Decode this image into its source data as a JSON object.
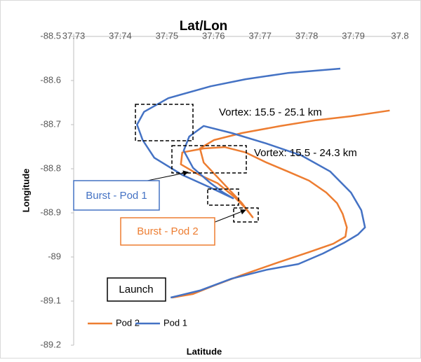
{
  "chart_data": {
    "type": "line",
    "title": "Lat/Lon",
    "x_label": "Latitude",
    "y_label": "Longitude",
    "xlim": [
      37.73,
      37.8
    ],
    "xticks": [
      37.73,
      37.74,
      37.75,
      37.76,
      37.77,
      37.78,
      37.79,
      37.8
    ],
    "ylim": [
      -89.2,
      -88.5
    ],
    "yticks": [
      -88.5,
      -88.6,
      -88.7,
      -88.8,
      -88.9,
      -89,
      -89.1,
      -89.2
    ],
    "grid": false,
    "legend": "bottom-left",
    "series": [
      {
        "name": "Pod 2",
        "color": "#ed7d31",
        "x": [
          37.7511,
          37.7556,
          37.7601,
          37.7661,
          37.7737,
          37.7805,
          37.7857,
          37.7883,
          37.7886,
          37.7877,
          37.7865,
          37.7842,
          37.7805,
          37.7759,
          37.7714,
          37.7669,
          37.7624,
          37.7579,
          37.7533,
          37.753,
          37.7564,
          37.7609,
          37.7646,
          37.7669,
          37.7684,
          37.7661,
          37.7621,
          37.7579,
          37.7571,
          37.7601,
          37.7661,
          37.7744,
          37.782,
          37.7895,
          37.7978
        ],
        "values": [
          -89.092,
          -89.084,
          -89.065,
          -89.041,
          -89.013,
          -88.989,
          -88.97,
          -88.954,
          -88.933,
          -88.902,
          -88.878,
          -88.854,
          -88.827,
          -88.806,
          -88.786,
          -88.763,
          -88.751,
          -88.754,
          -88.763,
          -88.79,
          -88.811,
          -88.833,
          -88.865,
          -88.89,
          -88.91,
          -88.878,
          -88.833,
          -88.786,
          -88.754,
          -88.735,
          -88.719,
          -88.703,
          -88.69,
          -88.681,
          -88.668
        ]
      },
      {
        "name": "Pod 1",
        "color": "#4472c4",
        "x": [
          37.7508,
          37.7571,
          37.7639,
          37.7714,
          37.7782,
          37.7835,
          37.788,
          37.791,
          37.7925,
          37.7917,
          37.7895,
          37.785,
          37.7789,
          37.7714,
          37.7639,
          37.7579,
          37.7548,
          37.7536,
          37.7556,
          37.7594,
          37.7621,
          37.7642,
          37.7594,
          37.7533,
          37.7473,
          37.7448,
          37.7436,
          37.7451,
          37.7503,
          37.7594,
          37.7669,
          37.7759,
          37.7872
        ],
        "values": [
          -89.092,
          -89.076,
          -89.049,
          -89.029,
          -89.016,
          -88.992,
          -88.968,
          -88.949,
          -88.933,
          -88.894,
          -88.854,
          -88.806,
          -88.77,
          -88.743,
          -88.719,
          -88.703,
          -88.727,
          -88.759,
          -88.798,
          -88.833,
          -88.854,
          -88.867,
          -88.843,
          -88.814,
          -88.775,
          -88.735,
          -88.7,
          -88.671,
          -88.64,
          -88.613,
          -88.597,
          -88.583,
          -88.573
        ]
      }
    ],
    "annotations": [
      "Vortex: 15.5 - 25.1 km",
      "Vortex: 15.5 - 24.3 km",
      "Burst - Pod 1",
      "Burst - Pod 2",
      "Launch"
    ]
  }
}
